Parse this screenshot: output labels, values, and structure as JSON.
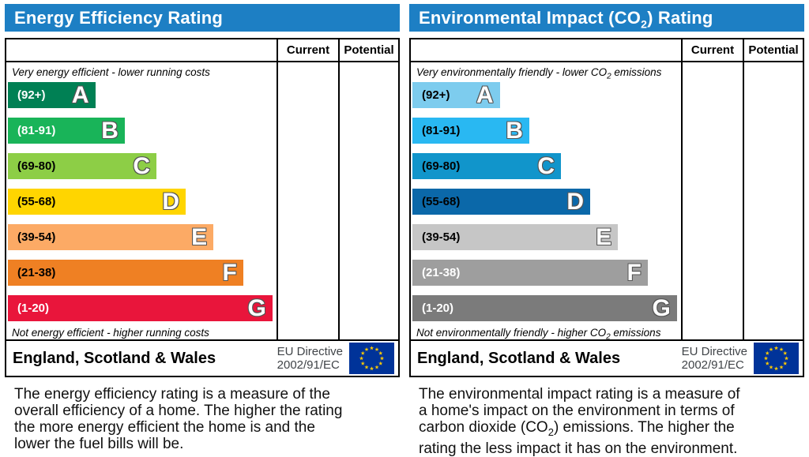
{
  "colors": {
    "header_bg": "#1d7fc4",
    "header_text": "#ffffff",
    "border": "#000000",
    "directive_text": "#404448",
    "flag_bg": "#003399",
    "flag_star": "#ffcc00",
    "letter_outline": "#555555"
  },
  "left": {
    "title": "Energy Efficiency Rating",
    "header": {
      "current": "Current",
      "potential": "Potential"
    },
    "top_caption": "Very energy efficient - lower running costs",
    "bottom_caption": "Not energy efficient - higher running costs",
    "bands": [
      {
        "range": "(92+)",
        "letter": "A",
        "color": "#008054",
        "width_pct": 32.5,
        "text_color": "#ffffff"
      },
      {
        "range": "(81-91)",
        "letter": "B",
        "color": "#19b459",
        "width_pct": 43.5,
        "text_color": "#ffffff"
      },
      {
        "range": "(69-80)",
        "letter": "C",
        "color": "#8dce46",
        "width_pct": 55.3,
        "text_color": "#000000"
      },
      {
        "range": "(55-68)",
        "letter": "D",
        "color": "#ffd500",
        "width_pct": 66.2,
        "text_color": "#000000"
      },
      {
        "range": "(39-54)",
        "letter": "E",
        "color": "#fcaa65",
        "width_pct": 76.5,
        "text_color": "#000000"
      },
      {
        "range": "(21-38)",
        "letter": "F",
        "color": "#ef8023",
        "width_pct": 87.6,
        "text_color": "#000000"
      },
      {
        "range": "(1-20)",
        "letter": "G",
        "color": "#e9153b",
        "width_pct": 98.5,
        "text_color": "#ffffff"
      }
    ],
    "footer": {
      "region": "England, Scotland & Wales",
      "directive_line1": "EU Directive",
      "directive_line2": "2002/91/EC"
    },
    "description_lines": [
      "The energy efficiency rating is a measure of the",
      "overall efficiency of a home. The higher the rating",
      "the more energy efficient the home is and the",
      "lower the fuel bills will be."
    ]
  },
  "right": {
    "title_pre": "Environmental Impact (CO",
    "title_sub": "2",
    "title_post": ") Rating",
    "header": {
      "current": "Current",
      "potential": "Potential"
    },
    "top_caption_pre": "Very environmentally friendly - lower CO",
    "top_caption_sub": "2",
    "top_caption_post": " emissions",
    "bottom_caption_pre": "Not environmentally friendly - higher CO",
    "bottom_caption_sub": "2",
    "bottom_caption_post": " emissions",
    "bands": [
      {
        "range": "(92+)",
        "letter": "A",
        "color": "#7dccee",
        "width_pct": 32.5,
        "text_color": "#000000"
      },
      {
        "range": "(81-91)",
        "letter": "B",
        "color": "#29b8f2",
        "width_pct": 43.5,
        "text_color": "#000000"
      },
      {
        "range": "(69-80)",
        "letter": "C",
        "color": "#1195cb",
        "width_pct": 55.3,
        "text_color": "#000000"
      },
      {
        "range": "(55-68)",
        "letter": "D",
        "color": "#0b68a9",
        "width_pct": 66.2,
        "text_color": "#000000"
      },
      {
        "range": "(39-54)",
        "letter": "E",
        "color": "#c6c6c6",
        "width_pct": 76.5,
        "text_color": "#000000"
      },
      {
        "range": "(21-38)",
        "letter": "F",
        "color": "#9e9e9e",
        "width_pct": 87.6,
        "text_color": "#ffffff"
      },
      {
        "range": "(1-20)",
        "letter": "G",
        "color": "#7b7b7b",
        "width_pct": 98.5,
        "text_color": "#ffffff"
      }
    ],
    "footer": {
      "region": "England, Scotland & Wales",
      "directive_line1": "EU Directive",
      "directive_line2": "2002/91/EC"
    },
    "description_line1": "The environmental impact rating is a measure of",
    "description_line2": "a home's impact on the environment in terms of",
    "description_line3_pre": "carbon dioxide (CO",
    "description_line3_sub": "2",
    "description_line3_post": ") emissions. The higher the",
    "description_line4": "rating the less impact it has on the environment."
  },
  "chart_data": [
    {
      "type": "bar",
      "title": "Energy Efficiency Rating",
      "orientation": "horizontal",
      "categories": [
        "A",
        "B",
        "C",
        "D",
        "E",
        "F",
        "G"
      ],
      "tick_labels": [
        "(92+)",
        "(81-91)",
        "(69-80)",
        "(55-68)",
        "(39-54)",
        "(21-38)",
        "(1-20)"
      ],
      "values": [
        32.5,
        43.5,
        55.3,
        66.2,
        76.5,
        87.6,
        98.5
      ],
      "value_unit": "percent of chart width",
      "bar_colors": [
        "#008054",
        "#19b459",
        "#8dce46",
        "#ffd500",
        "#fcaa65",
        "#ef8023",
        "#e9153b"
      ],
      "columns": [
        "Current",
        "Potential"
      ],
      "current_value": null,
      "potential_value": null,
      "top_note": "Very energy efficient - lower running costs",
      "bottom_note": "Not energy efficient - higher running costs"
    },
    {
      "type": "bar",
      "title": "Environmental Impact (CO2) Rating",
      "orientation": "horizontal",
      "categories": [
        "A",
        "B",
        "C",
        "D",
        "E",
        "F",
        "G"
      ],
      "tick_labels": [
        "(92+)",
        "(81-91)",
        "(69-80)",
        "(55-68)",
        "(39-54)",
        "(21-38)",
        "(1-20)"
      ],
      "values": [
        32.5,
        43.5,
        55.3,
        66.2,
        76.5,
        87.6,
        98.5
      ],
      "value_unit": "percent of chart width",
      "bar_colors": [
        "#7dccee",
        "#29b8f2",
        "#1195cb",
        "#0b68a9",
        "#c6c6c6",
        "#9e9e9e",
        "#7b7b7b"
      ],
      "columns": [
        "Current",
        "Potential"
      ],
      "current_value": null,
      "potential_value": null,
      "top_note": "Very environmentally friendly - lower CO2 emissions",
      "bottom_note": "Not environmentally friendly - higher CO2 emissions"
    }
  ]
}
